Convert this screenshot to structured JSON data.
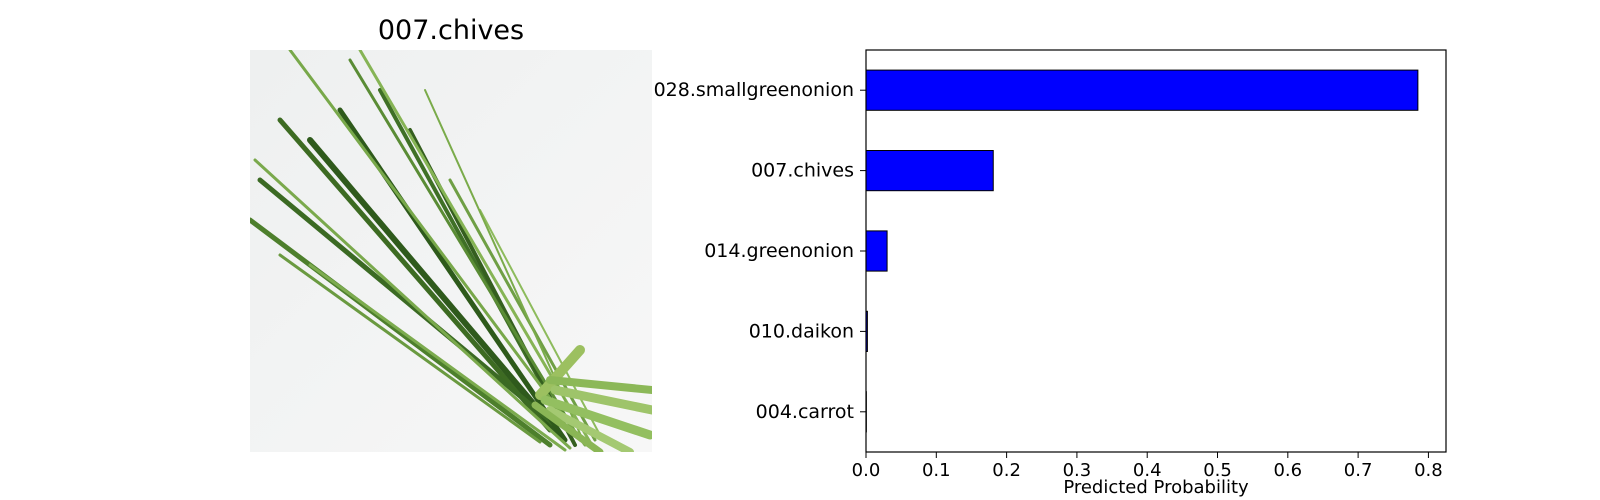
{
  "image_panel": {
    "title": "007.chives",
    "image_subject": "bundle of chives"
  },
  "chart_data": {
    "type": "bar",
    "orientation": "horizontal",
    "categories": [
      "028.smallgreenonion",
      "007.chives",
      "014.greenonion",
      "010.daikon",
      "004.carrot"
    ],
    "values": [
      0.785,
      0.181,
      0.03,
      0.002,
      0.0005
    ],
    "xlabel": "Predicted Probability",
    "ylabel": "",
    "xlim": [
      0.0,
      0.825
    ],
    "xticks": [
      0.0,
      0.1,
      0.2,
      0.3,
      0.4,
      0.5,
      0.6,
      0.7,
      0.8
    ],
    "xtick_labels": [
      "0.0",
      "0.1",
      "0.2",
      "0.3",
      "0.4",
      "0.5",
      "0.6",
      "0.7",
      "0.8"
    ],
    "grid": false,
    "legend": false,
    "bar_color": "#0000ff",
    "bar_edge_color": "#000000"
  }
}
